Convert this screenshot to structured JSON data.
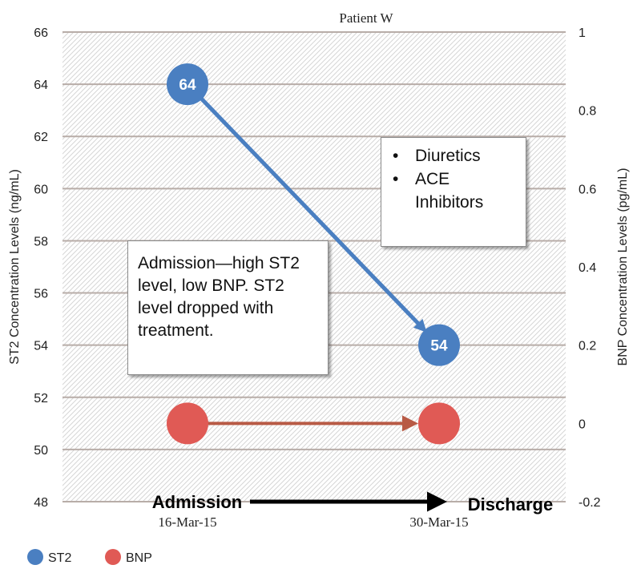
{
  "chart_data": {
    "type": "line",
    "title": "Patient W",
    "ylabel_left": "ST2 Concentration Levels (ng/mL)",
    "ylabel_right": "BNP Concentration Levels (pg/mL)",
    "ylim_left": [
      48,
      66
    ],
    "yticks_left": [
      "48",
      "50",
      "52",
      "54",
      "56",
      "58",
      "60",
      "62",
      "64",
      "66"
    ],
    "ylim_right": [
      -0.2,
      1
    ],
    "yticks_right": [
      "-0.2",
      "0",
      "0.2",
      "0.4",
      "0.6",
      "0.8",
      "1"
    ],
    "categories": [
      "16-Mar-15",
      "30-Mar-15"
    ],
    "timeline": {
      "start_label": "Admission",
      "end_label": "Discharge"
    },
    "grid": true,
    "legend_position": "bottom-left",
    "series": [
      {
        "name": "ST2",
        "axis": "left",
        "values": [
          64,
          54
        ],
        "labels": [
          "64",
          "54"
        ],
        "color": "#4a7fc1"
      },
      {
        "name": "BNP",
        "axis": "right",
        "values": [
          0,
          0
        ],
        "color": "#e05a55"
      }
    ],
    "annotations": {
      "left_box": "Admission—high ST2 level, low BNP. ST2 level dropped with treatment.",
      "right_box": [
        "Diuretics",
        "ACE Inhibitors"
      ]
    }
  },
  "colors": {
    "st2": "#4a7fc1",
    "bnp": "#e05a55",
    "bnp_arrow": "#b85a45",
    "grid": "#b8ada8",
    "hatch": "#d9d9d9",
    "timeline_arrow": "#000000"
  }
}
